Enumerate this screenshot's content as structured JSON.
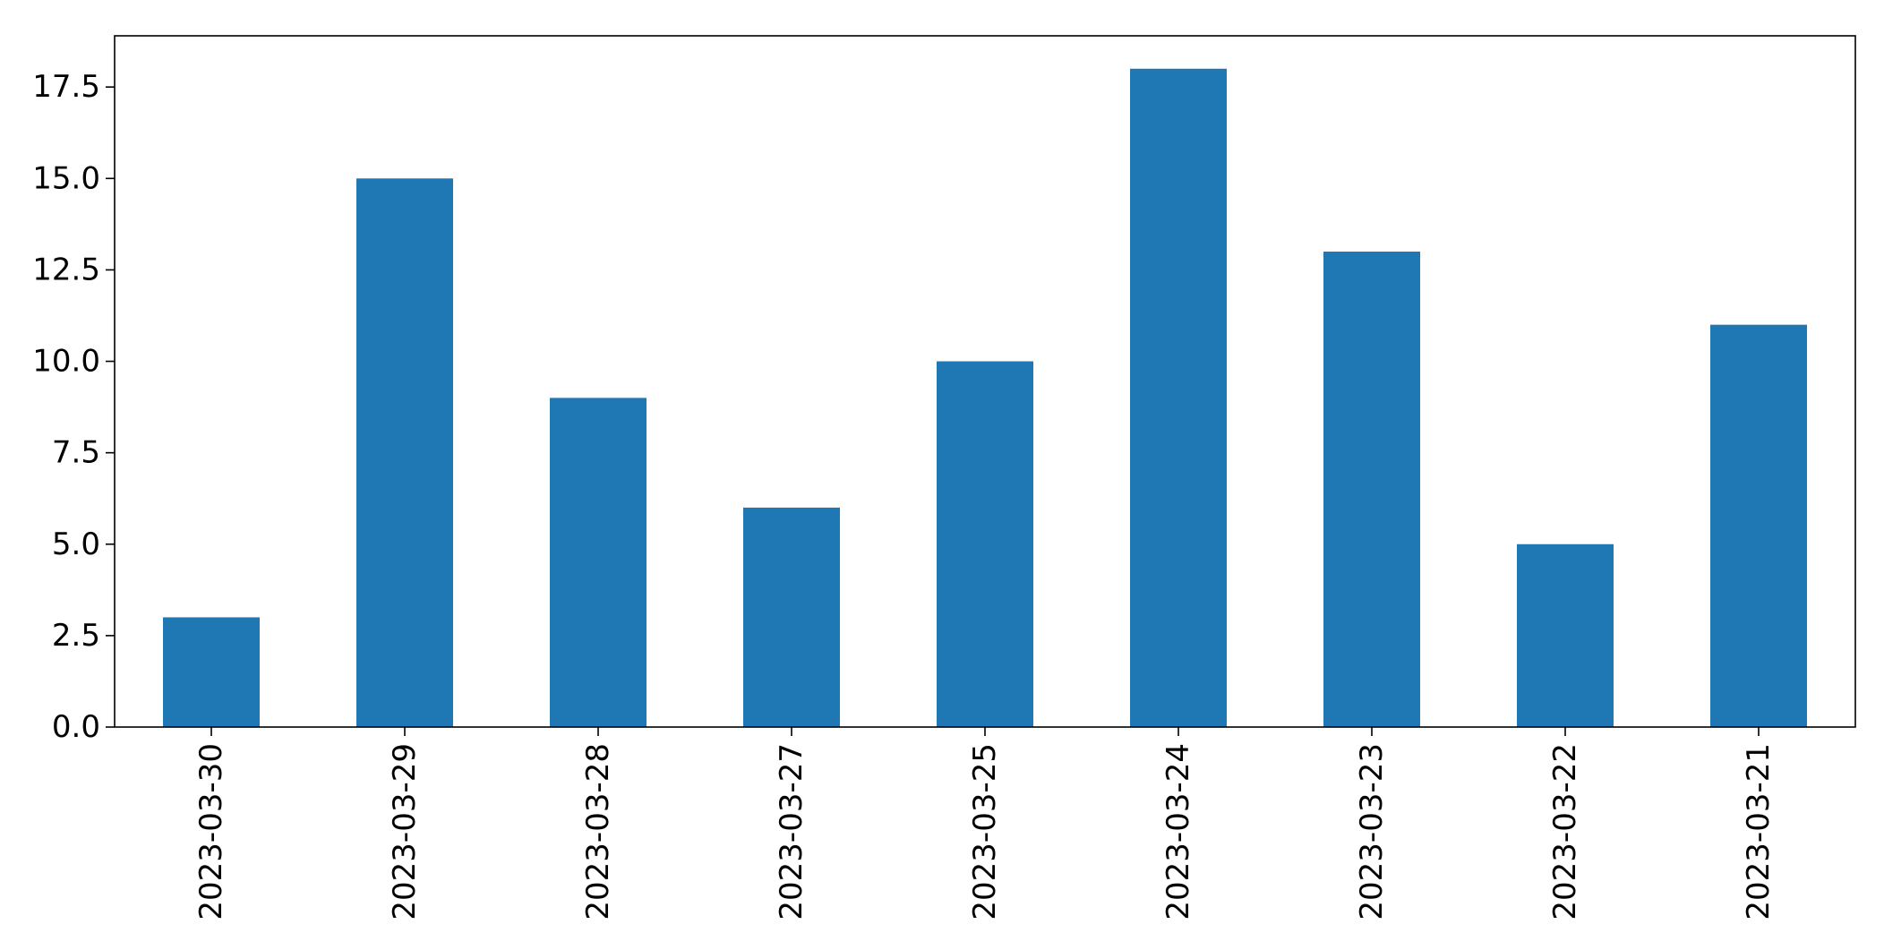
{
  "chart_data": {
    "type": "bar",
    "categories": [
      "2023-03-30",
      "2023-03-29",
      "2023-03-28",
      "2023-03-27",
      "2023-03-25",
      "2023-03-24",
      "2023-03-23",
      "2023-03-22",
      "2023-03-21"
    ],
    "values": [
      3,
      15,
      9,
      6,
      10,
      18,
      13,
      5,
      11
    ],
    "title": "",
    "xlabel": "",
    "ylabel": "",
    "ylim": [
      0,
      18.9
    ],
    "yticks": [
      "0.0",
      "2.5",
      "5.0",
      "7.5",
      "10.0",
      "12.5",
      "15.0",
      "17.5"
    ],
    "grid": false,
    "bar_color": "#1f77b4",
    "x_tick_rotation": "vertical"
  }
}
